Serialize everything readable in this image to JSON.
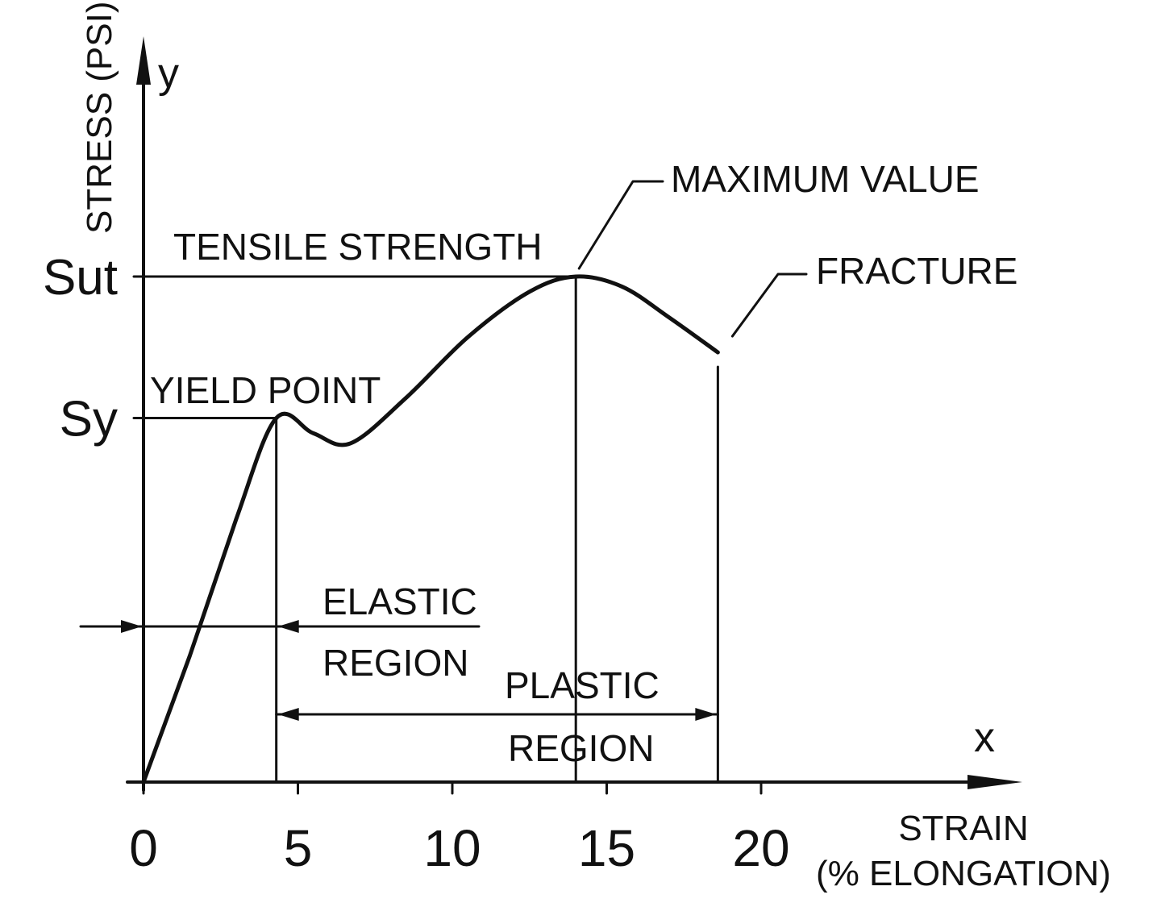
{
  "chart_data": {
    "type": "line",
    "title": "",
    "ylabel": "STRESS (PSI)",
    "y_symbol": "y",
    "xlabel_line1": "STRAIN",
    "xlabel_line2": "(% ELONGATION)",
    "x_symbol": "x",
    "xlim": [
      0,
      24
    ],
    "x_ticks": [
      "0",
      "5",
      "10",
      "15",
      "20"
    ],
    "x_tick_values": [
      0,
      5,
      10,
      15,
      20
    ],
    "y_levels": [
      {
        "label": "Sut",
        "value": 1.0
      },
      {
        "label": "Sy",
        "value": 0.72
      }
    ],
    "grid": false,
    "series": [
      {
        "x": [
          0,
          1.5,
          3.0,
          4.3,
          5.5,
          6.7,
          8.5,
          10.5,
          12.5,
          14.0,
          15.5,
          17.0,
          18.6
        ],
        "y": [
          0,
          0.25,
          0.52,
          0.72,
          0.69,
          0.67,
          0.76,
          0.88,
          0.97,
          1.0,
          0.98,
          0.92,
          0.85
        ]
      }
    ],
    "annotations": {
      "tensile_strength": "TENSILE STRENGTH",
      "yield_point": "YIELD POINT",
      "maximum_value": "MAXIMUM VALUE",
      "fracture": "FRACTURE",
      "elastic_line1": "ELASTIC",
      "elastic_line2": "REGION",
      "plastic_line1": "PLASTIC",
      "plastic_line2": "REGION"
    },
    "markers": {
      "yield_strain": 4.3,
      "max_strain": 14.0,
      "fracture_strain": 18.6
    }
  }
}
